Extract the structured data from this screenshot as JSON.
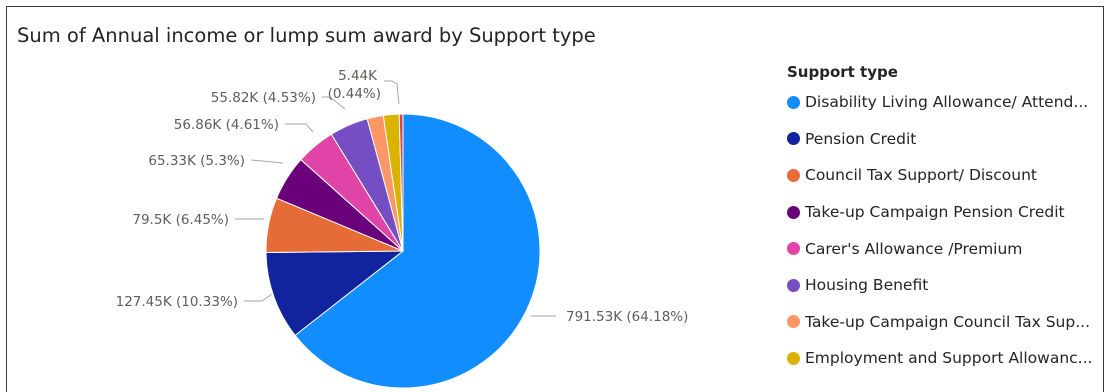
{
  "chart_data": {
    "type": "pie",
    "title": "Sum of Annual income or lump sum award by Support type",
    "legend_title": "Support type",
    "legend_position": "right",
    "slices": [
      {
        "name": "Disability Living Allowance/ Attend...",
        "value": 791.53,
        "percent": 64.18,
        "label": "791.53K (64.18%)",
        "color": "#118dff"
      },
      {
        "name": "Pension Credit",
        "value": 127.45,
        "percent": 10.33,
        "label": "127.45K (10.33%)",
        "color": "#12239e"
      },
      {
        "name": "Council Tax Support/ Discount",
        "value": 79.5,
        "percent": 6.45,
        "label": "79.5K (6.45%)",
        "color": "#e66c37"
      },
      {
        "name": "Take-up Campaign Pension Credit",
        "value": 65.33,
        "percent": 5.3,
        "label": "65.33K (5.3%)",
        "color": "#6b007b"
      },
      {
        "name": "Carer's Allowance /Premium",
        "value": 56.86,
        "percent": 4.61,
        "label": "56.86K (4.61%)",
        "color": "#e044a7"
      },
      {
        "name": "Housing Benefit",
        "value": 55.82,
        "percent": 4.53,
        "label": "55.82K (4.53%)",
        "color": "#744ec2"
      },
      {
        "name": "Take-up Campaign Council Tax Sup...",
        "value": 23.5,
        "percent": 1.91,
        "label": "",
        "color": "#fe9666"
      },
      {
        "name": "Employment and Support Allowanc...",
        "value": 22.8,
        "percent": 1.85,
        "label": "",
        "color": "#d9b300"
      },
      {
        "name": "",
        "value": 5.44,
        "percent": 0.44,
        "label": "5.44K (0.44%)",
        "color": "#d64550"
      }
    ]
  }
}
